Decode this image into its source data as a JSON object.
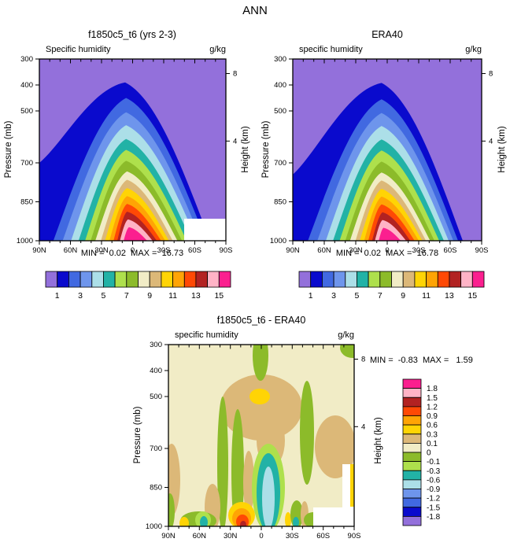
{
  "title": "ANN",
  "palette": [
    "#9370DB",
    "#0A0ACD",
    "#4169E1",
    "#6E95EC",
    "#ACDFE8",
    "#22B2A6",
    "#AEE04C",
    "#8CBB2A",
    "#F1ECC6",
    "#DCB878",
    "#FFD405",
    "#FFA405",
    "#FF4905",
    "#B22222",
    "#FFB3C6",
    "#FB1F8F"
  ],
  "white": "#FFFFFF",
  "labels": {
    "model_title": "f1850c5_t6 (yrs 2-3)",
    "era40_title": "ERA40",
    "diff_title": "f1850c5_t6 - ERA40",
    "model_sub_left": "Specific humidity",
    "era40_sub_left": "specific humidity",
    "diff_sub_left": "specific humidity",
    "units": "g/kg",
    "model_minmax": "MIN =  0.02  MAX =  16.73",
    "era40_minmax": "MIN =  0.02  MAX =  16.78",
    "diff_minmax": "MIN =  -0.83  MAX =   1.59",
    "pressure_axis": "Pressure (mb)",
    "height_axis": "Height (km)"
  },
  "axes": {
    "lat_ticks": [
      "90N",
      "60N",
      "30N",
      "0",
      "30S",
      "60S",
      "90S"
    ],
    "pressure_ticks": [
      "300",
      "400",
      "500",
      "700",
      "850",
      "1000"
    ],
    "pressure_values": [
      300,
      400,
      500,
      700,
      850,
      1000
    ],
    "height_ticks": [
      "8",
      "4"
    ],
    "height_tick_pressures": [
      356,
      616
    ]
  },
  "colorbar": {
    "labels": [
      "1",
      "3",
      "5",
      "7",
      "9",
      "11",
      "13",
      "15"
    ],
    "label_boundaries": [
      1,
      3,
      5,
      7,
      9,
      11,
      13,
      15
    ]
  },
  "diff_colorbar": {
    "labels": [
      "1.8",
      "1.5",
      "1.2",
      "0.9",
      "0.6",
      "0.3",
      "0.1",
      "0",
      "-0.1",
      "-0.3",
      "-0.6",
      "-0.9",
      "-1.2",
      "-1.5",
      "-1.8"
    ]
  },
  "chart_data": [
    {
      "id": "model",
      "type": "contour",
      "title": "f1850c5_t6 (yrs 2-3)",
      "field": "Specific humidity",
      "units": "g/kg",
      "x_axis": "latitude (90N to 90S)",
      "y_axis": "Pressure (mb), linear 300 (top) to 1000 (bottom)",
      "y2_axis": "Height (km), ticks 8 and 4",
      "min": 0.02,
      "max": 16.73,
      "contour_interval": 1,
      "contour_range": [
        1,
        15
      ],
      "levels": [
        {
          "v": 1,
          "xl": 0,
          "xr": 0.915,
          "px": 0.46,
          "pk": 390,
          "edge": 700
        },
        {
          "v": 2,
          "xl": 0.075,
          "xr": 0.895,
          "px": 0.465,
          "pk": 450
        },
        {
          "v": 3,
          "xl": 0.125,
          "xr": 0.87,
          "px": 0.465,
          "pk": 505
        },
        {
          "v": 4,
          "xl": 0.17,
          "xr": 0.845,
          "px": 0.465,
          "pk": 555
        },
        {
          "v": 5,
          "xl": 0.21,
          "xr": 0.815,
          "px": 0.465,
          "pk": 608
        },
        {
          "v": 6,
          "xl": 0.245,
          "xr": 0.79,
          "px": 0.465,
          "pk": 650
        },
        {
          "v": 7,
          "xl": 0.275,
          "xr": 0.765,
          "px": 0.465,
          "pk": 692
        },
        {
          "v": 8,
          "xl": 0.3,
          "xr": 0.74,
          "px": 0.47,
          "pk": 733
        },
        {
          "v": 9,
          "xl": 0.33,
          "xr": 0.715,
          "px": 0.47,
          "pk": 765
        },
        {
          "v": 10,
          "xl": 0.352,
          "xr": 0.695,
          "px": 0.47,
          "pk": 797
        },
        {
          "v": 11,
          "xl": 0.376,
          "xr": 0.675,
          "px": 0.47,
          "pk": 828
        },
        {
          "v": 12,
          "xl": 0.398,
          "xr": 0.653,
          "px": 0.47,
          "pk": 858
        },
        {
          "v": 13,
          "xl": 0.418,
          "xr": 0.63,
          "px": 0.47,
          "pk": 888
        },
        {
          "v": 14,
          "xl": 0.432,
          "xr": 0.607,
          "px": 0.475,
          "pk": 918
        },
        {
          "v": 15,
          "xl": 0.452,
          "xr": 0.578,
          "px": 0.48,
          "pk": 948
        }
      ],
      "surface_mask": {
        "note": "white Antarctic surface gap ~50S-90S below ~915 mb",
        "rects": [
          [
            184,
            203,
            53,
            28
          ]
        ]
      }
    },
    {
      "id": "era40",
      "type": "contour",
      "title": "ERA40",
      "field": "specific humidity",
      "units": "g/kg",
      "min": 0.02,
      "max": 16.78,
      "contour_interval": 1,
      "contour_range": [
        1,
        15
      ],
      "levels": [
        {
          "v": 1,
          "xl": 0,
          "xr": 0.9,
          "px": 0.47,
          "pk": 392,
          "edge": 745
        },
        {
          "v": 2,
          "xl": 0.08,
          "xr": 0.875,
          "px": 0.47,
          "pk": 455
        },
        {
          "v": 3,
          "xl": 0.13,
          "xr": 0.85,
          "px": 0.47,
          "pk": 508
        },
        {
          "v": 4,
          "xl": 0.175,
          "xr": 0.825,
          "px": 0.47,
          "pk": 558
        },
        {
          "v": 5,
          "xl": 0.213,
          "xr": 0.8,
          "px": 0.47,
          "pk": 610
        },
        {
          "v": 6,
          "xl": 0.248,
          "xr": 0.775,
          "px": 0.47,
          "pk": 652
        },
        {
          "v": 7,
          "xl": 0.278,
          "xr": 0.75,
          "px": 0.47,
          "pk": 695
        },
        {
          "v": 8,
          "xl": 0.303,
          "xr": 0.727,
          "px": 0.47,
          "pk": 737
        },
        {
          "v": 9,
          "xl": 0.332,
          "xr": 0.705,
          "px": 0.47,
          "pk": 768
        },
        {
          "v": 10,
          "xl": 0.355,
          "xr": 0.686,
          "px": 0.47,
          "pk": 800
        },
        {
          "v": 11,
          "xl": 0.378,
          "xr": 0.667,
          "px": 0.47,
          "pk": 830
        },
        {
          "v": 12,
          "xl": 0.4,
          "xr": 0.645,
          "px": 0.47,
          "pk": 860
        },
        {
          "v": 13,
          "xl": 0.42,
          "xr": 0.622,
          "px": 0.475,
          "pk": 890
        },
        {
          "v": 14,
          "xl": 0.435,
          "xr": 0.6,
          "px": 0.475,
          "pk": 920
        },
        {
          "v": 15,
          "xl": 0.455,
          "xr": 0.572,
          "px": 0.48,
          "pk": 950
        }
      ],
      "surface_mask": {
        "rects": []
      }
    },
    {
      "id": "diff",
      "type": "contour-difference",
      "title": "f1850c5_t6 - ERA40",
      "field": "specific humidity",
      "units": "g/kg",
      "min": -0.83,
      "max": 1.59,
      "levels": [
        -1.8,
        -1.5,
        -1.2,
        -0.9,
        -0.6,
        -0.3,
        -0.1,
        0,
        0.1,
        0.3,
        0.6,
        0.9,
        1.2,
        1.5,
        1.8
      ],
      "background_color_index": 8,
      "features": [
        {
          "t": "e",
          "c": 9,
          "p": [
            118,
            80,
            52,
            42
          ]
        },
        {
          "t": "e",
          "c": 9,
          "p": [
            130,
            122,
            18,
            34
          ]
        },
        {
          "t": "e",
          "c": 10,
          "p": [
            116,
            66,
            13,
            10
          ]
        },
        {
          "t": "e",
          "c": 7,
          "p": [
            117,
            14,
            10,
            32
          ]
        },
        {
          "t": "e",
          "c": 7,
          "p": [
            234,
            4,
            16,
            13
          ]
        },
        {
          "t": "e",
          "c": 9,
          "p": [
            4,
            172,
            11,
            46
          ]
        },
        {
          "t": "e",
          "c": 7,
          "p": [
            69,
            152,
            7,
            86
          ]
        },
        {
          "t": "e",
          "c": 7,
          "p": [
            88,
            162,
            8,
            80
          ]
        },
        {
          "t": "e",
          "c": 9,
          "p": [
            102,
            175,
            7,
            40
          ]
        },
        {
          "t": "e",
          "c": 7,
          "p": [
            176,
            112,
            9,
            66
          ]
        },
        {
          "t": "e",
          "c": 9,
          "p": [
            212,
            130,
            26,
            40
          ]
        },
        {
          "t": "e",
          "c": 9,
          "p": [
            56,
            207,
            10,
            30
          ]
        },
        {
          "t": "e",
          "c": 7,
          "p": [
            38,
            224,
            23,
            12
          ]
        },
        {
          "t": "e",
          "c": 6,
          "p": [
            44,
            223,
            10,
            11
          ]
        },
        {
          "t": "e",
          "c": 5,
          "p": [
            45,
            226,
            5,
            8
          ]
        },
        {
          "t": "e",
          "c": 7,
          "p": [
            2,
            212,
            6,
            23
          ]
        },
        {
          "t": "e",
          "c": 10,
          "p": [
            20,
            227,
            6,
            8
          ]
        },
        {
          "t": "e",
          "c": 10,
          "p": [
            93,
            217,
            17,
            17
          ]
        },
        {
          "t": "e",
          "c": 11,
          "p": [
            93,
            221,
            12,
            13
          ]
        },
        {
          "t": "e",
          "c": 12,
          "p": [
            94,
            225,
            8,
            9
          ]
        },
        {
          "t": "e",
          "c": 13,
          "p": [
            95,
            229,
            4,
            5
          ]
        },
        {
          "t": "e",
          "c": 6,
          "p": [
            127,
            182,
            21,
            56
          ]
        },
        {
          "t": "e",
          "c": 5,
          "p": [
            127,
            188,
            15,
            50
          ]
        },
        {
          "t": "e",
          "c": 4,
          "p": [
            127,
            195,
            8,
            40
          ]
        },
        {
          "t": "e",
          "c": 10,
          "p": [
            152,
            223,
            4,
            10
          ]
        },
        {
          "t": "e",
          "c": 7,
          "p": [
            163,
            216,
            8,
            18
          ]
        },
        {
          "t": "e",
          "c": 5,
          "p": [
            162,
            226,
            4,
            7
          ]
        },
        {
          "t": "e",
          "c": 9,
          "p": [
            173,
            216,
            5,
            17
          ]
        },
        {
          "t": "e",
          "c": 7,
          "p": [
            184,
            223,
            12,
            10
          ]
        },
        {
          "t": "r",
          "c": -1,
          "p": [
            184,
            207,
            52,
            24
          ]
        },
        {
          "t": "r",
          "c": -1,
          "p": [
            221,
            152,
            15,
            79
          ]
        },
        {
          "t": "r",
          "c": 10,
          "p": [
            231,
            152,
            5,
            54
          ]
        }
      ]
    }
  ]
}
